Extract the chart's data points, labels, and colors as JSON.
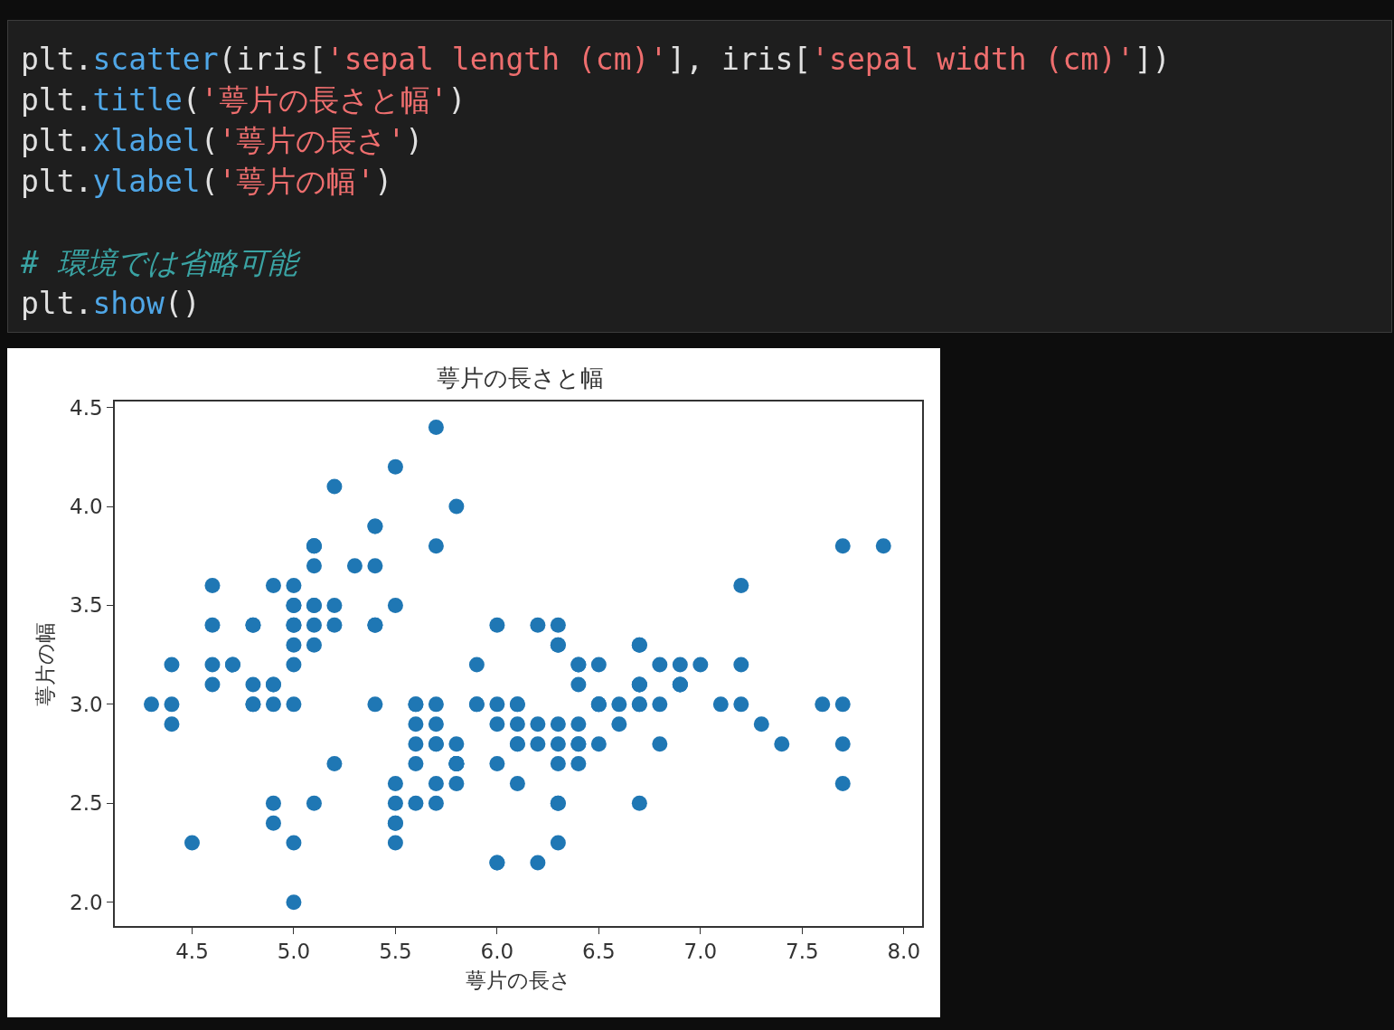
{
  "chart_data": {
    "type": "scatter",
    "title": "萼片の長さと幅",
    "xlabel": "萼片の長さ",
    "ylabel": "萼片の幅",
    "annotations": [
      "plt.scatter(iris['sepal length (cm)'], iris['sepal width (cm)'])",
      "plt.title('萼片の長さと幅')",
      "plt.xlabel('萼片の長さ')",
      "plt.ylabel('萼片の幅')",
      "# 環境では省略可能",
      "plt.show()"
    ],
    "x": [
      5.1,
      4.9,
      4.7,
      4.6,
      5.0,
      5.4,
      4.6,
      5.0,
      4.4,
      4.9,
      5.4,
      4.8,
      4.8,
      4.3,
      5.8,
      5.7,
      5.4,
      5.1,
      5.7,
      5.1,
      5.4,
      5.1,
      4.6,
      5.1,
      4.8,
      5.0,
      5.0,
      5.2,
      5.2,
      4.7,
      4.8,
      5.4,
      5.2,
      5.5,
      4.9,
      5.0,
      5.5,
      4.9,
      4.4,
      5.1,
      5.0,
      4.5,
      4.4,
      5.0,
      5.1,
      4.8,
      5.1,
      4.6,
      5.3,
      5.0,
      7.0,
      6.4,
      6.9,
      5.5,
      6.5,
      5.7,
      6.3,
      4.9,
      6.6,
      5.2,
      5.0,
      5.9,
      6.0,
      6.1,
      5.6,
      6.7,
      5.6,
      5.8,
      6.2,
      5.6,
      5.9,
      6.1,
      6.3,
      6.1,
      6.4,
      6.6,
      6.8,
      6.7,
      6.0,
      5.7,
      5.5,
      5.5,
      5.8,
      6.0,
      5.4,
      6.0,
      6.7,
      6.3,
      5.6,
      5.5,
      5.5,
      6.1,
      5.8,
      5.0,
      5.6,
      5.7,
      5.7,
      6.2,
      5.1,
      5.7,
      6.3,
      5.8,
      7.1,
      6.3,
      6.5,
      7.6,
      4.9,
      7.3,
      6.7,
      7.2,
      6.5,
      6.4,
      6.8,
      5.7,
      5.8,
      6.4,
      6.5,
      7.7,
      7.7,
      6.0,
      6.9,
      5.6,
      7.7,
      6.3,
      6.7,
      7.2,
      6.2,
      6.1,
      6.4,
      7.2,
      7.4,
      7.9,
      6.4,
      6.3,
      6.1,
      7.7,
      6.3,
      6.4,
      6.0,
      6.9,
      6.7,
      6.9,
      5.8,
      6.8,
      6.7,
      6.7,
      6.3,
      6.5,
      6.2,
      5.9
    ],
    "values": [
      3.5,
      3.0,
      3.2,
      3.1,
      3.6,
      3.9,
      3.4,
      3.4,
      2.9,
      3.1,
      3.7,
      3.4,
      3.0,
      3.0,
      4.0,
      4.4,
      3.9,
      3.5,
      3.8,
      3.8,
      3.4,
      3.7,
      3.6,
      3.3,
      3.4,
      3.0,
      3.4,
      3.5,
      3.4,
      3.2,
      3.1,
      3.4,
      4.1,
      4.2,
      3.1,
      3.2,
      3.5,
      3.6,
      3.0,
      3.4,
      3.5,
      2.3,
      3.2,
      3.5,
      3.8,
      3.0,
      3.8,
      3.2,
      3.7,
      3.3,
      3.2,
      3.2,
      3.1,
      2.3,
      2.8,
      2.8,
      3.3,
      2.4,
      2.9,
      2.7,
      2.0,
      3.0,
      2.2,
      2.9,
      2.9,
      3.1,
      3.0,
      2.7,
      2.2,
      2.5,
      3.2,
      2.8,
      2.5,
      2.8,
      2.9,
      3.0,
      2.8,
      3.0,
      2.9,
      2.6,
      2.4,
      2.4,
      2.7,
      2.7,
      3.0,
      3.4,
      3.1,
      2.3,
      3.0,
      2.5,
      2.6,
      3.0,
      2.6,
      2.3,
      2.7,
      3.0,
      2.9,
      2.9,
      2.5,
      2.8,
      3.3,
      2.7,
      3.0,
      2.9,
      3.0,
      3.0,
      2.5,
      2.9,
      2.5,
      3.6,
      3.2,
      2.7,
      3.0,
      2.5,
      2.8,
      3.2,
      3.0,
      3.8,
      2.6,
      2.2,
      3.2,
      2.8,
      2.8,
      2.7,
      3.3,
      3.2,
      2.8,
      3.0,
      2.8,
      3.0,
      2.8,
      3.8,
      2.8,
      2.8,
      2.6,
      3.0,
      3.4,
      3.1,
      3.0,
      3.1,
      3.1,
      3.1,
      2.7,
      3.2,
      3.3,
      3.0,
      2.5,
      3.0,
      3.4,
      3.0
    ],
    "color": "#1f77b4",
    "marker": "circle",
    "xlim": [
      4.12,
      8.09
    ],
    "xticks": [
      4.5,
      {
        "value": 5,
        "label": "5.0"
      },
      5.5,
      {
        "value": 6,
        "label": "6.0"
      },
      6.5,
      {
        "value": 7,
        "label": "7.0"
      },
      7.5,
      {
        "value": 8,
        "label": "8.0"
      }
    ],
    "ylim": [
      1.88,
      4.53
    ],
    "yticks": [
      {
        "value": 2,
        "label": "2.0"
      },
      2.5,
      {
        "value": 3,
        "label": "3.0"
      },
      3.5,
      {
        "value": 4,
        "label": "4.0"
      },
      4.5
    ],
    "grid": false
  }
}
